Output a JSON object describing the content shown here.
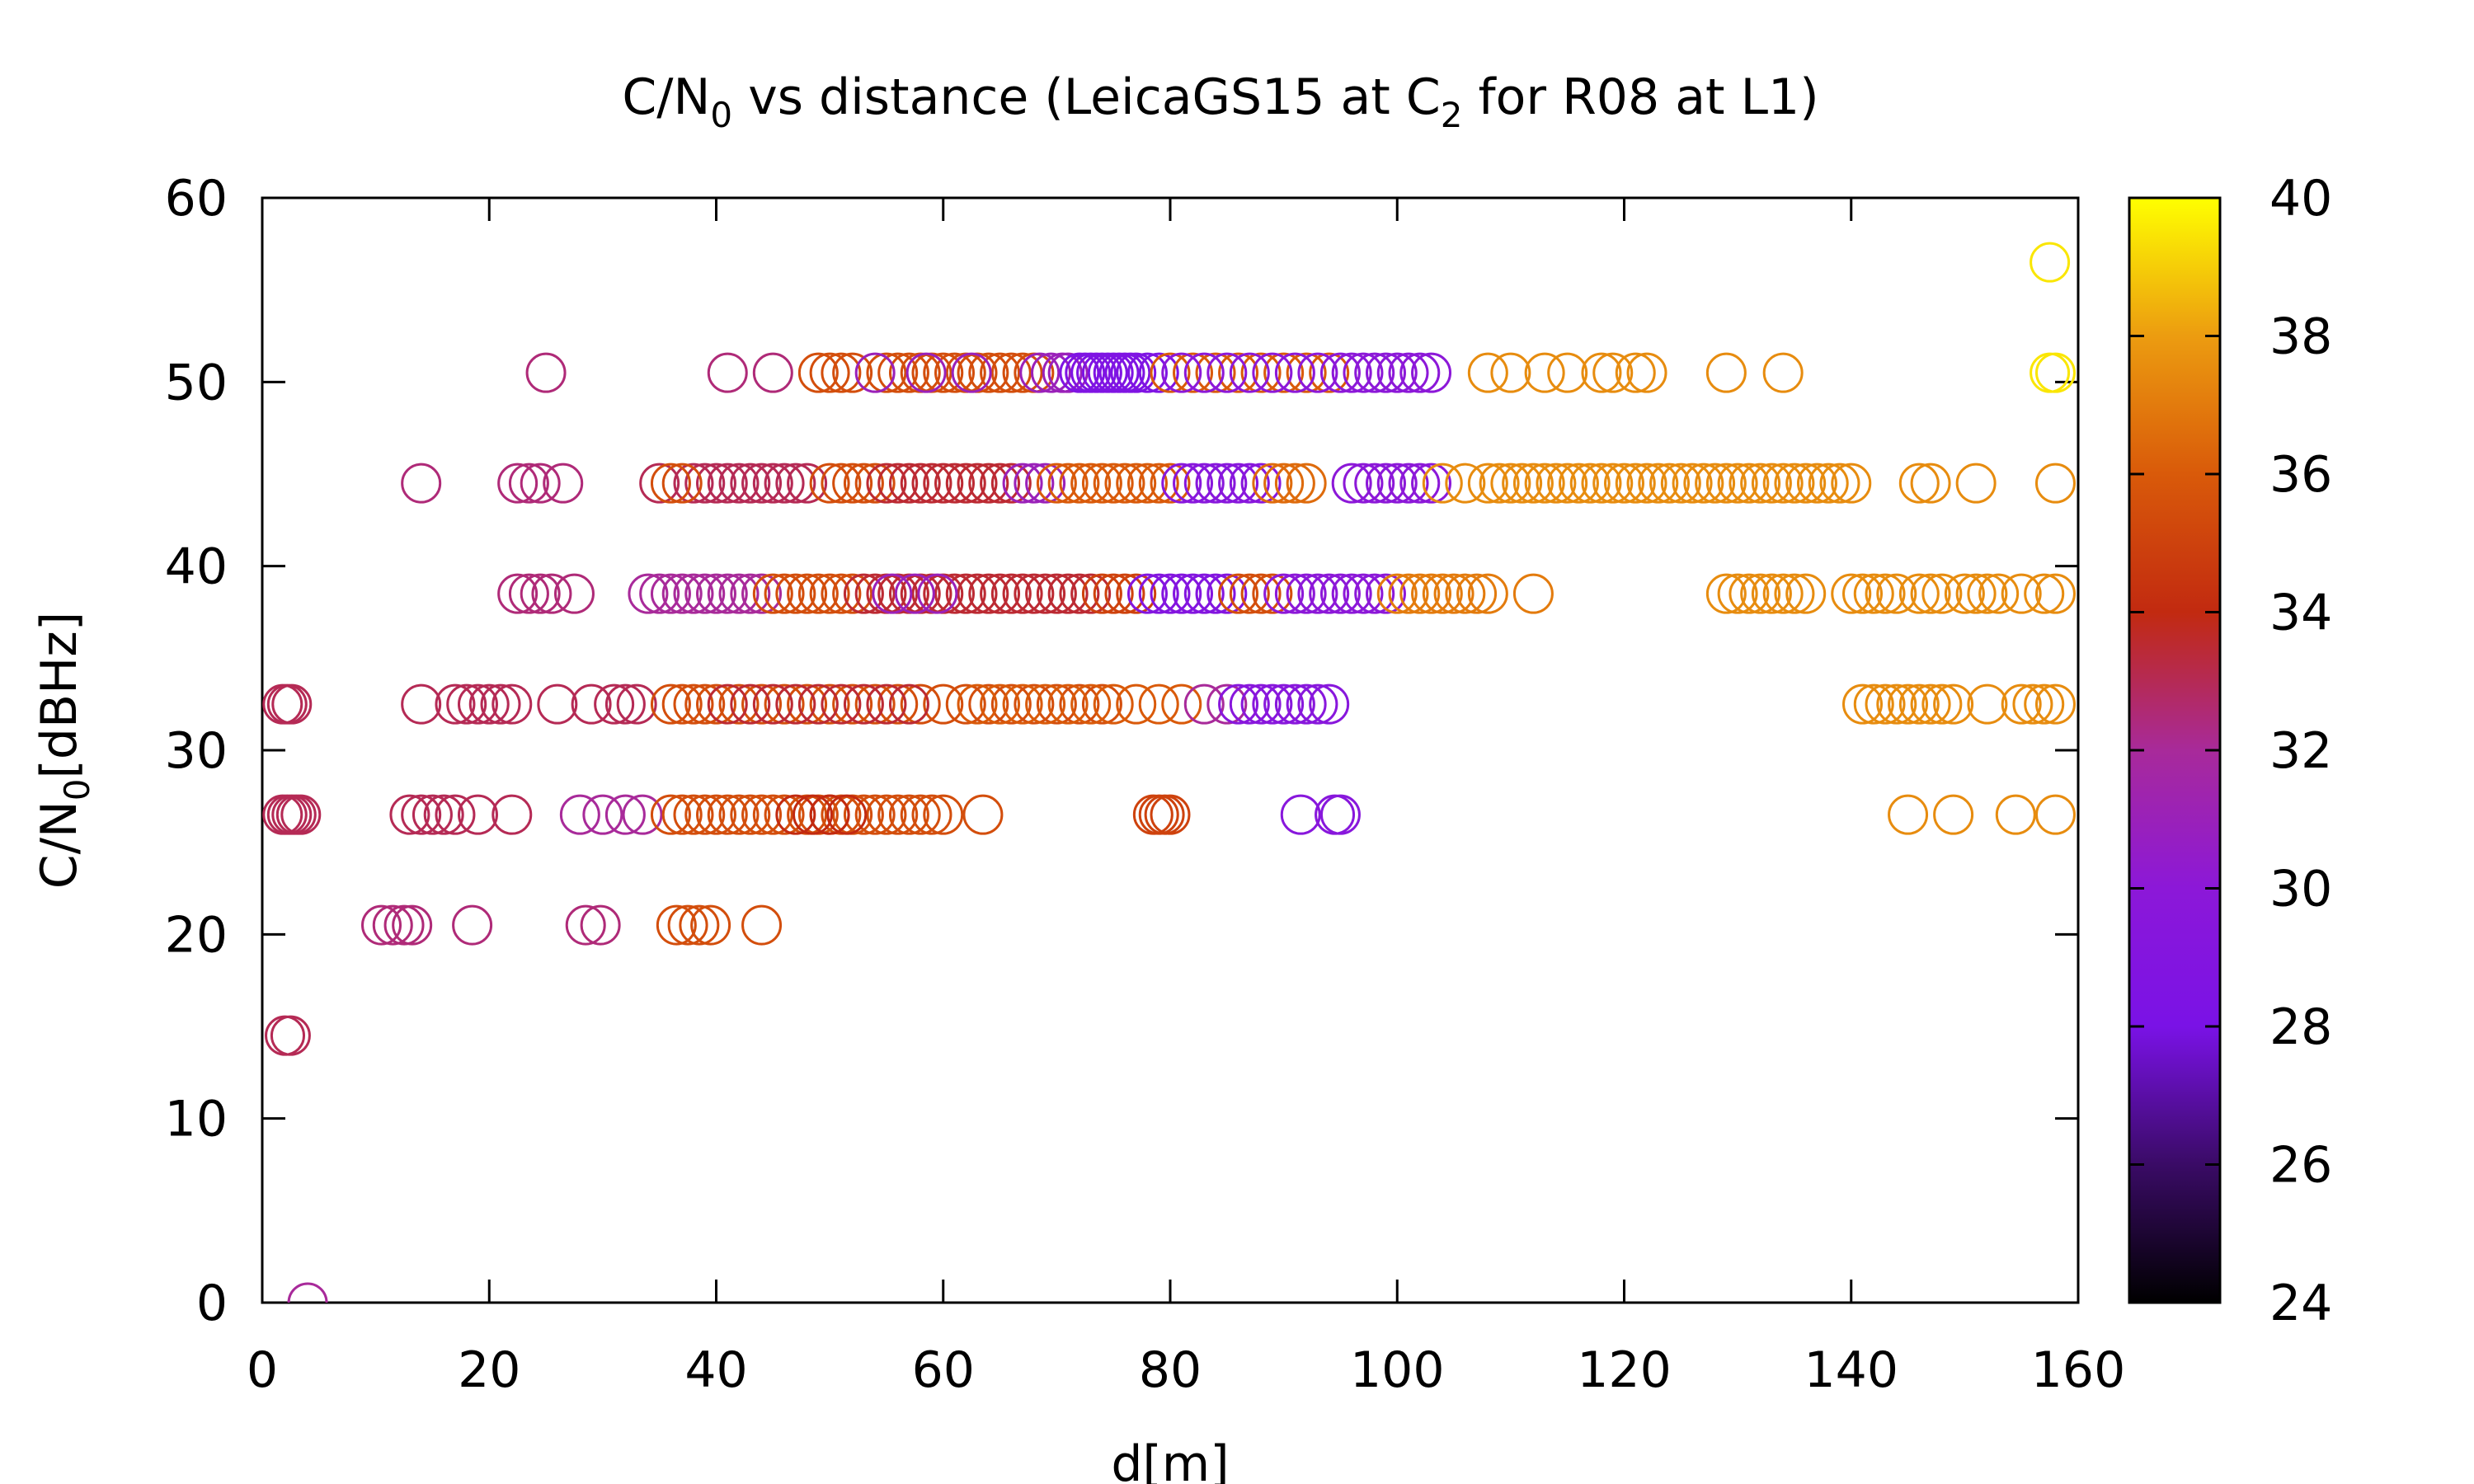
{
  "chart_data": {
    "type": "scatter",
    "title": "C/N0 vs distance (LeicaGS15 at C2 for R08 at L1)",
    "title_parts": {
      "a": "C/N",
      "a_sub": "0",
      "b": " vs distance (LeicaGS15 at C",
      "b_sub": "2",
      "c": " for R08 at L1)"
    },
    "xlabel": "d[m]",
    "ylabel": "C/N0[dBHz]",
    "ylabel_parts": {
      "a": "C/N",
      "a_sub": "0",
      "b": "[dBHz]"
    },
    "xlim": [
      0,
      160
    ],
    "ylim": [
      0,
      60
    ],
    "x_ticks": [
      0,
      20,
      40,
      60,
      80,
      100,
      120,
      140,
      160
    ],
    "y_ticks": [
      0,
      10,
      20,
      30,
      40,
      50,
      60
    ],
    "x_tick_labels": [
      "0",
      "20",
      "40",
      "60",
      "80",
      "100",
      "120",
      "140",
      "160"
    ],
    "y_tick_labels": [
      "0",
      "10",
      "20",
      "30",
      "40",
      "50",
      "60"
    ],
    "marker": "open-circle",
    "grid": false,
    "colorbar": {
      "range": [
        24,
        40
      ],
      "ticks": [
        24,
        26,
        28,
        30,
        32,
        34,
        36,
        38,
        40
      ],
      "tick_labels": [
        "24",
        "26",
        "28",
        "30",
        "32",
        "34",
        "36",
        "38",
        "40"
      ],
      "palette": [
        "#000000",
        "#3a0b66",
        "#7a12e6",
        "#8c18d8",
        "#a82a9a",
        "#c22a10",
        "#d95a0a",
        "#ec9c10",
        "#ffff00"
      ]
    },
    "rows": [
      {
        "y": 0,
        "c": 32,
        "x": [
          4
        ]
      },
      {
        "y": 14.5,
        "c": 33,
        "x": [
          2,
          2.5
        ]
      },
      {
        "y": 20.5,
        "c": 32.5,
        "x": [
          10.5,
          11.5,
          12.5,
          13.2,
          18.5,
          28.5,
          29.8
        ]
      },
      {
        "y": 20.5,
        "c": 35.5,
        "x": [
          36.5,
          37.5,
          38.5,
          39.5,
          44
        ]
      },
      {
        "y": 26.5,
        "c": 33,
        "x": [
          1.8,
          2.2,
          2.6,
          3.0,
          3.4,
          13,
          14,
          15,
          16,
          17,
          19,
          22
        ]
      },
      {
        "y": 26.5,
        "c": 32,
        "x": [
          28,
          30,
          32,
          33.5
        ]
      },
      {
        "y": 26.5,
        "c": 35.5,
        "x": [
          36,
          37,
          38,
          39,
          40,
          41,
          42,
          43,
          44,
          45,
          46,
          48,
          49,
          50,
          51,
          52,
          53,
          54,
          55,
          56,
          57,
          58,
          59,
          60,
          63.5
        ]
      },
      {
        "y": 26.5,
        "c": 34,
        "x": [
          47,
          48.5,
          50,
          51.5
        ]
      },
      {
        "y": 26.5,
        "c": 35,
        "x": [
          78.5,
          79,
          79.5,
          80
        ]
      },
      {
        "y": 26.5,
        "c": 29.5,
        "x": [
          91.5,
          94.5,
          95
        ]
      },
      {
        "y": 26.5,
        "c": 37.5,
        "x": [
          145,
          149,
          154.5,
          158
        ]
      },
      {
        "y": 32.5,
        "c": 33,
        "x": [
          1.8,
          2.2,
          2.6,
          14,
          17,
          18,
          19,
          20,
          21,
          22,
          26,
          29,
          31,
          32,
          33
        ]
      },
      {
        "y": 32.5,
        "c": 35.5,
        "x": [
          36,
          37,
          38,
          39,
          40,
          42,
          44,
          46,
          48,
          50,
          52,
          54,
          56,
          58,
          60,
          62,
          64,
          66,
          68,
          70,
          72,
          74
        ]
      },
      {
        "y": 32.5,
        "c": 33.5,
        "x": [
          41,
          43,
          45,
          47,
          49,
          51,
          53,
          55,
          57
        ]
      },
      {
        "y": 32.5,
        "c": 36,
        "x": [
          63,
          65,
          67,
          69,
          71,
          73,
          75,
          77,
          79,
          81
        ]
      },
      {
        "y": 32.5,
        "c": 32,
        "x": [
          83,
          85
        ]
      },
      {
        "y": 32.5,
        "c": 29.5,
        "x": [
          86,
          87,
          88,
          89,
          90,
          91,
          92,
          93,
          94
        ]
      },
      {
        "y": 32.5,
        "c": 37.5,
        "x": [
          141,
          142,
          143,
          144,
          145,
          146,
          147,
          148,
          149,
          152,
          155,
          156,
          157,
          158
        ]
      },
      {
        "y": 38.5,
        "c": 32.5,
        "x": [
          22.5,
          23.5,
          24.5,
          25.5,
          27.5
        ]
      },
      {
        "y": 38.5,
        "c": 32,
        "x": [
          34,
          35,
          36,
          37,
          38,
          39,
          40,
          41,
          42,
          43,
          44
        ]
      },
      {
        "y": 38.5,
        "c": 35.5,
        "x": [
          45,
          46,
          47,
          48,
          49,
          50,
          51,
          52
        ]
      },
      {
        "y": 38.5,
        "c": 33.5,
        "x": [
          53,
          54,
          55,
          56,
          57,
          58,
          59,
          60,
          61,
          62,
          63,
          64,
          65,
          66,
          67,
          68,
          69,
          70,
          71,
          72,
          73
        ]
      },
      {
        "y": 38.5,
        "c": 31,
        "x": [
          55.5,
          57.5,
          59.5
        ]
      },
      {
        "y": 38.5,
        "c": 35,
        "x": [
          74,
          75,
          76,
          77
        ]
      },
      {
        "y": 38.5,
        "c": 29,
        "x": [
          78,
          79,
          80,
          81,
          82,
          83,
          84,
          85
        ]
      },
      {
        "y": 38.5,
        "c": 35.5,
        "x": [
          86,
          87,
          88,
          89
        ]
      },
      {
        "y": 38.5,
        "c": 30,
        "x": [
          90,
          91,
          92,
          93,
          94,
          95,
          96,
          97,
          98,
          99
        ]
      },
      {
        "y": 38.5,
        "c": 37,
        "x": [
          100,
          101,
          102,
          103,
          104,
          105,
          106,
          107,
          108,
          112
        ]
      },
      {
        "y": 38.5,
        "c": 37.5,
        "x": [
          129,
          130,
          131,
          132,
          133,
          134,
          135,
          136,
          140,
          141,
          142,
          143,
          144,
          146,
          147,
          148,
          150,
          151,
          152,
          153,
          155,
          157,
          158
        ]
      },
      {
        "y": 44.5,
        "c": 32.5,
        "x": [
          14,
          22.5,
          23.5,
          24.5,
          26.5
        ]
      },
      {
        "y": 44.5,
        "c": 33,
        "x": [
          35,
          38,
          39,
          40,
          41,
          42,
          43,
          44,
          45,
          46,
          47,
          48
        ]
      },
      {
        "y": 44.5,
        "c": 35.5,
        "x": [
          36,
          37,
          50,
          51,
          52,
          53,
          54
        ]
      },
      {
        "y": 44.5,
        "c": 33.5,
        "x": [
          55,
          56,
          57,
          58,
          59,
          60,
          61,
          62,
          63,
          64,
          65,
          66
        ]
      },
      {
        "y": 44.5,
        "c": 31,
        "x": [
          67,
          68,
          69
        ]
      },
      {
        "y": 44.5,
        "c": 36,
        "x": [
          70,
          71,
          72,
          73,
          74,
          75,
          76,
          77,
          78,
          79,
          80
        ]
      },
      {
        "y": 44.5,
        "c": 29.5,
        "x": [
          81,
          82,
          83,
          84,
          85,
          86,
          87,
          88
        ]
      },
      {
        "y": 44.5,
        "c": 36.5,
        "x": [
          89,
          90,
          91,
          92
        ]
      },
      {
        "y": 44.5,
        "c": 30,
        "x": [
          96,
          97,
          98,
          99,
          100,
          101,
          102,
          103
        ]
      },
      {
        "y": 44.5,
        "c": 37.5,
        "x": [
          104,
          106,
          108,
          109,
          110,
          111,
          112,
          113,
          114,
          115,
          116,
          117,
          118,
          119,
          120,
          121,
          122,
          123,
          124,
          125,
          126,
          127,
          128,
          129,
          130,
          131,
          132,
          133,
          134,
          135,
          136,
          137,
          138,
          139,
          140,
          146,
          147,
          151,
          158
        ]
      },
      {
        "y": 50.5,
        "c": 32.5,
        "x": [
          25,
          41,
          45
        ]
      },
      {
        "y": 50.5,
        "c": 35.5,
        "x": [
          49,
          50,
          51,
          52,
          55,
          56,
          57,
          58,
          59,
          60,
          61,
          62,
          63,
          64,
          65,
          66,
          67,
          68
        ]
      },
      {
        "y": 50.5,
        "c": 31,
        "x": [
          54,
          58.5,
          62.5,
          68.5,
          69.5,
          70.5,
          71
        ]
      },
      {
        "y": 50.5,
        "c": 28.5,
        "x": [
          72,
          72.5,
          73,
          73.5,
          74,
          74.5,
          75,
          75.5,
          76,
          76.5,
          77,
          78,
          79
        ]
      },
      {
        "y": 50.5,
        "c": 36,
        "x": [
          80,
          82,
          84,
          86,
          88,
          90,
          92,
          94
        ]
      },
      {
        "y": 50.5,
        "c": 30,
        "x": [
          81,
          83,
          85,
          87,
          89,
          91,
          93,
          95,
          96,
          97,
          98,
          99,
          100,
          101,
          102,
          103
        ]
      },
      {
        "y": 50.5,
        "c": 37.5,
        "x": [
          108,
          110,
          113,
          115,
          118,
          119,
          121,
          122,
          129,
          134
        ]
      },
      {
        "y": 50.5,
        "c": 39.5,
        "x": [
          157.5,
          158
        ]
      },
      {
        "y": 56.5,
        "c": 39.5,
        "x": [
          157.5
        ]
      }
    ]
  }
}
